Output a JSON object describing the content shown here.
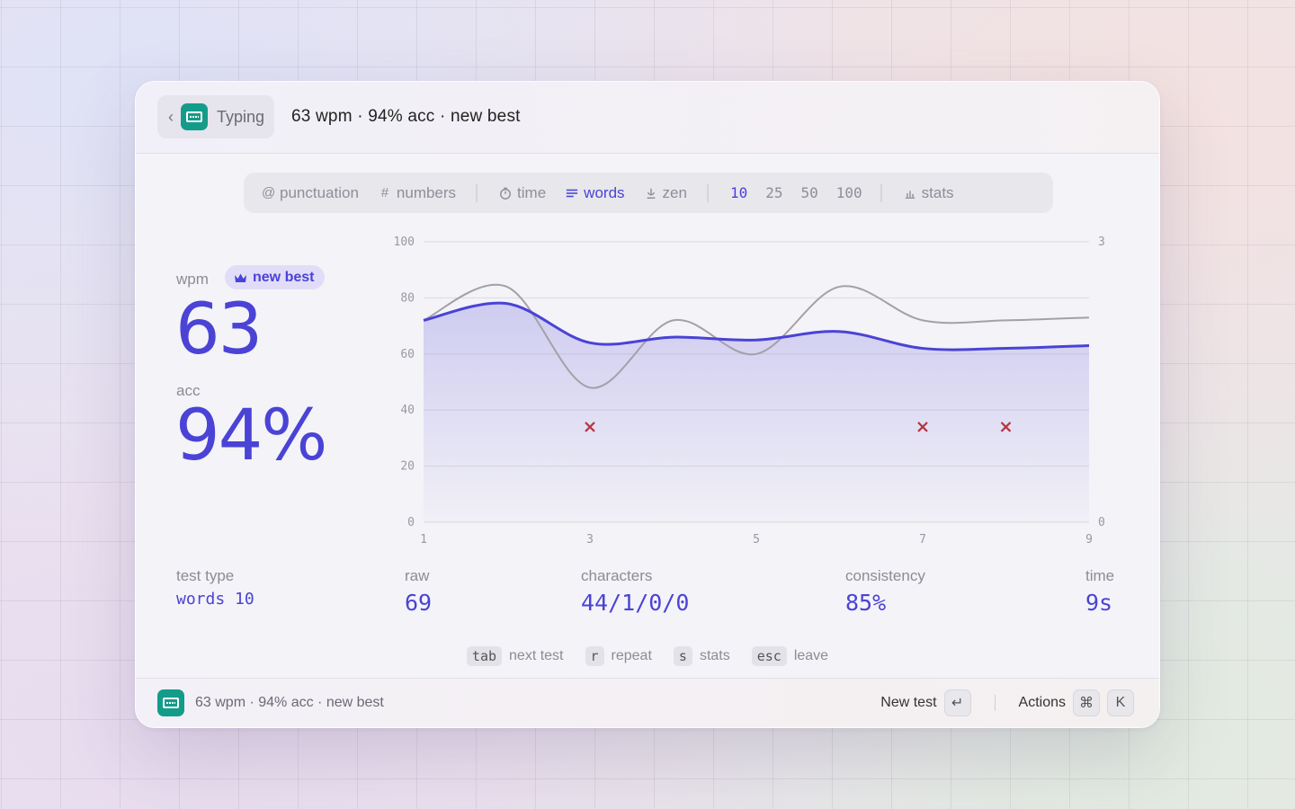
{
  "header": {
    "back_label": "Typing",
    "title": "63 wpm · 94% acc · new best"
  },
  "modebar": {
    "punctuation": "punctuation",
    "numbers": "numbers",
    "time": "time",
    "words": "words",
    "zen": "zen",
    "counts": [
      "10",
      "25",
      "50",
      "100"
    ],
    "active_count": "10",
    "stats": "stats"
  },
  "result": {
    "wpm_label": "wpm",
    "wpm": "63",
    "badge": "new best",
    "acc_label": "acc",
    "acc": "94%"
  },
  "bottom_stats": {
    "test_type_label": "test type",
    "test_type": "words 10",
    "raw_label": "raw",
    "raw": "69",
    "characters_label": "characters",
    "characters": "44/1/0/0",
    "consistency_label": "consistency",
    "consistency": "85%",
    "time_label": "time",
    "time": "9s"
  },
  "hints": [
    {
      "key": "tab",
      "label": "next test"
    },
    {
      "key": "r",
      "label": "repeat"
    },
    {
      "key": "s",
      "label": "stats"
    },
    {
      "key": "esc",
      "label": "leave"
    }
  ],
  "footer": {
    "status": "63 wpm · 94% acc · new best",
    "new_test": "New test",
    "enter_key": "↵",
    "actions": "Actions",
    "cmd_key": "⌘",
    "k_key": "K"
  },
  "colors": {
    "accent": "#4a43d6",
    "raw_line": "#a3a1a8",
    "error": "#b5363f",
    "app_icon": "#149c8a"
  },
  "chart_data": {
    "type": "line",
    "x": [
      1,
      2,
      3,
      4,
      5,
      6,
      7,
      8,
      9
    ],
    "xticks": [
      "1",
      "3",
      "5",
      "7",
      "9"
    ],
    "ylim": [
      0,
      100
    ],
    "yticks": [
      "0",
      "20",
      "40",
      "60",
      "80",
      "100"
    ],
    "y2lim": [
      0,
      3
    ],
    "y2ticks": [
      "0",
      "3"
    ],
    "series": [
      {
        "values": [
          72,
          78,
          64,
          66,
          65,
          68,
          62,
          62,
          63
        ]
      },
      {
        "values": [
          72,
          84,
          48,
          72,
          60,
          84,
          72,
          72,
          73
        ]
      }
    ],
    "errors": [
      {
        "x": 3,
        "count": 1
      },
      {
        "x": 7,
        "count": 1
      },
      {
        "x": 8,
        "count": 1
      }
    ],
    "grid": true
  }
}
